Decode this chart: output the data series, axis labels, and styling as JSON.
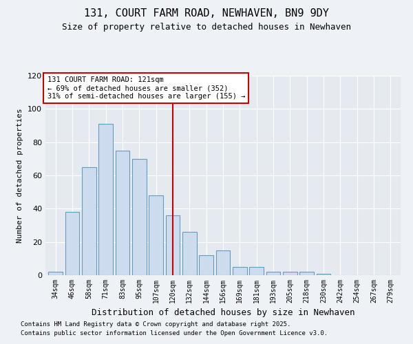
{
  "title": "131, COURT FARM ROAD, NEWHAVEN, BN9 9DY",
  "subtitle": "Size of property relative to detached houses in Newhaven",
  "xlabel": "Distribution of detached houses by size in Newhaven",
  "ylabel": "Number of detached properties",
  "bins": [
    "34sqm",
    "46sqm",
    "58sqm",
    "71sqm",
    "83sqm",
    "95sqm",
    "107sqm",
    "120sqm",
    "132sqm",
    "144sqm",
    "156sqm",
    "169sqm",
    "181sqm",
    "193sqm",
    "205sqm",
    "218sqm",
    "230sqm",
    "242sqm",
    "254sqm",
    "267sqm",
    "279sqm"
  ],
  "values": [
    2,
    38,
    65,
    91,
    75,
    70,
    48,
    36,
    26,
    12,
    15,
    5,
    5,
    2,
    2,
    2,
    1,
    0,
    0,
    0,
    0
  ],
  "property_bin_index": 7,
  "annotation_title": "131 COURT FARM ROAD: 121sqm",
  "annotation_line1": "← 69% of detached houses are smaller (352)",
  "annotation_line2": "31% of semi-detached houses are larger (155) →",
  "bar_color": "#ccdcee",
  "bar_edge_color": "#6699bb",
  "marker_line_color": "#cc0000",
  "annotation_box_edge": "#cc0000",
  "footnote1": "Contains HM Land Registry data © Crown copyright and database right 2025.",
  "footnote2": "Contains public sector information licensed under the Open Government Licence v3.0.",
  "background_color": "#eef2f6",
  "plot_bg_color": "#e4eaf0",
  "ylim_max": 120,
  "yticks": [
    0,
    20,
    40,
    60,
    80,
    100,
    120
  ]
}
